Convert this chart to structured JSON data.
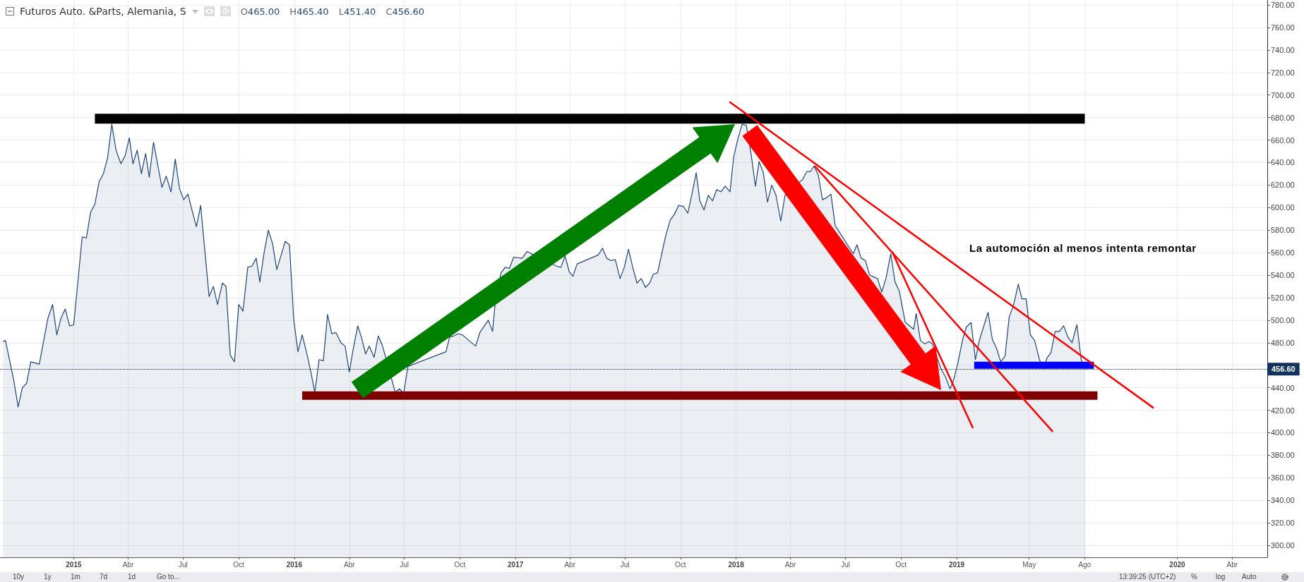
{
  "chart_data": {
    "type": "area",
    "title": "Futuros Auto. &Parts, Alemania, S",
    "annotations": [
      "O465.00",
      "H465.40",
      "L451.40",
      "C456.60",
      "La automoción al menos intenta remontar",
      "10y",
      "1y",
      "1m",
      "7d",
      "1d",
      "Go to...",
      "13:39:25 (UTC+2)",
      "%",
      "log",
      "Auto"
    ],
    "series": [
      {
        "color": "#1f4677",
        "x": [
          "2014-09-06",
          "2014-09-10",
          "2014-09-24",
          "2014-10-01",
          "2014-10-08",
          "2014-10-15",
          "2014-10-22",
          "2014-11-05",
          "2014-11-19",
          "2014-11-27",
          "2014-12-04",
          "2014-12-11",
          "2014-12-18",
          "2014-12-25",
          "2015-01-01",
          "2015-01-15",
          "2015-01-22",
          "2015-01-29",
          "2015-02-05",
          "2015-02-12",
          "2015-02-19",
          "2015-02-26",
          "2015-03-05",
          "2015-03-12",
          "2015-03-20",
          "2015-03-27",
          "2015-04-03",
          "2015-04-09",
          "2015-04-16",
          "2015-04-23",
          "2015-04-30",
          "2015-05-06",
          "2015-05-13",
          "2015-05-27",
          "2015-06-03",
          "2015-06-11",
          "2015-06-18",
          "2015-06-25",
          "2015-07-02",
          "2015-07-09",
          "2015-07-17",
          "2015-07-23",
          "2015-07-30",
          "2015-08-13",
          "2015-08-20",
          "2015-08-27",
          "2015-09-04",
          "2015-09-10",
          "2015-09-17",
          "2015-09-24",
          "2015-10-01",
          "2015-10-08",
          "2015-10-16",
          "2015-10-23",
          "2015-10-30",
          "2015-11-05",
          "2015-11-12",
          "2015-11-19",
          "2015-11-26",
          "2015-12-03",
          "2015-12-17",
          "2015-12-24",
          "2015-12-31",
          "2016-01-07",
          "2016-01-14",
          "2016-01-21",
          "2016-01-28",
          "2016-02-04",
          "2016-02-11",
          "2016-02-18",
          "2016-02-25",
          "2016-03-03",
          "2016-03-10",
          "2016-03-18",
          "2016-03-25",
          "2016-04-01",
          "2016-04-08",
          "2016-04-15",
          "2016-04-21",
          "2016-04-28",
          "2016-05-04",
          "2016-05-12",
          "2016-05-19",
          "2016-05-26",
          "2016-06-02",
          "2016-06-09",
          "2016-06-16",
          "2016-06-23",
          "2016-06-30",
          "2016-07-07",
          "2016-09-08",
          "2016-09-14",
          "2016-09-21",
          "2016-09-28",
          "2016-10-05",
          "2016-10-19",
          "2016-10-27",
          "2016-11-03",
          "2016-11-17",
          "2016-11-24",
          "2016-11-28",
          "2016-12-08",
          "2016-12-15",
          "2016-12-22",
          "2016-12-29",
          "2017-01-12",
          "2017-01-20",
          "2017-01-27",
          "2017-02-03",
          "2017-02-17",
          "2017-03-01",
          "2017-03-10",
          "2017-03-17",
          "2017-03-24",
          "2017-03-31",
          "2017-04-06",
          "2017-04-13",
          "2017-04-20",
          "2017-04-27",
          "2017-05-06",
          "2017-05-18",
          "2017-05-25",
          "2017-06-01",
          "2017-06-08",
          "2017-06-15",
          "2017-06-23",
          "2017-06-30",
          "2017-07-07",
          "2017-07-14",
          "2017-07-21",
          "2017-07-28",
          "2017-08-04",
          "2017-08-11",
          "2017-08-17",
          "2017-08-24",
          "2017-08-31",
          "2017-09-07",
          "2017-09-14",
          "2017-09-21",
          "2017-09-28",
          "2017-10-06",
          "2017-10-13",
          "2017-10-20",
          "2017-10-27",
          "2017-11-02",
          "2017-11-09",
          "2017-11-16",
          "2017-11-23",
          "2017-11-30",
          "2017-12-07",
          "2017-12-14",
          "2017-12-22",
          "2017-12-28",
          "2018-01-04",
          "2018-01-11",
          "2018-01-18",
          "2018-01-26",
          "2018-02-02",
          "2018-02-08",
          "2018-02-15",
          "2018-02-22",
          "2018-03-01",
          "2018-03-08",
          "2018-03-16",
          "2018-03-23",
          "2018-03-30",
          "2018-04-06",
          "2018-04-13",
          "2018-04-21",
          "2018-04-28",
          "2018-05-04",
          "2018-05-10",
          "2018-05-17",
          "2018-05-24",
          "2018-05-31",
          "2018-06-07",
          "2018-06-14",
          "2018-07-14",
          "2018-07-20",
          "2018-07-27",
          "2018-08-03",
          "2018-08-10",
          "2018-08-16",
          "2018-08-23",
          "2018-08-30",
          "2018-09-06",
          "2018-09-14",
          "2018-09-21",
          "2018-09-28",
          "2018-10-08",
          "2018-10-15",
          "2018-10-22",
          "2018-10-26",
          "2018-11-02",
          "2018-11-09",
          "2018-11-16",
          "2018-11-22",
          "2018-11-29",
          "2018-12-06",
          "2018-12-14",
          "2018-12-21",
          "2018-12-27",
          "2019-01-03",
          "2019-01-11",
          "2019-01-17",
          "2019-01-25",
          "2019-02-01",
          "2019-02-08",
          "2019-02-22",
          "2019-03-01",
          "2019-03-08",
          "2019-03-15",
          "2019-03-22",
          "2019-03-29",
          "2019-04-05",
          "2019-04-13",
          "2019-04-19",
          "2019-04-26",
          "2019-05-03",
          "2019-05-10",
          "2019-05-18",
          "2019-05-24",
          "2019-05-31",
          "2019-06-06",
          "2019-06-13",
          "2019-06-20",
          "2019-06-27",
          "2019-07-04",
          "2019-07-11",
          "2019-07-19",
          "2019-07-26",
          "2019-08-02"
        ],
        "values": [
          481,
          482,
          446,
          423,
          440,
          444,
          463,
          461,
          501,
          514,
          487,
          502,
          510,
          495,
          496,
          574,
          573,
          596,
          603,
          623,
          630,
          644,
          674,
          651,
          639,
          646,
          662,
          639,
          651,
          630,
          648,
          627,
          658,
          618,
          628,
          614,
          643,
          617,
          607,
          612,
          595,
          583,
          602,
          521,
          530,
          514,
          533,
          530,
          469,
          463,
          514,
          508,
          547,
          548,
          555,
          534,
          560,
          580,
          568,
          545,
          570,
          567,
          501,
          472,
          487,
          472,
          455,
          436,
          465,
          464,
          505,
          488,
          489,
          480,
          477,
          454,
          476,
          495,
          485,
          470,
          477,
          467,
          486,
          477,
          null,
          null,
          436,
          439,
          435,
          459,
          472,
          485,
          486,
          488,
          487,
          null,
          477,
          489,
          500,
          490,
          513,
          542,
          547,
          546,
          556,
          555,
          561,
          null,
          null,
          null,
          null,
          548,
          547,
          557,
          543,
          539,
          550,
          null,
          null,
          null,
          558,
          564,
          555,
          553,
          554,
          537,
          547,
          563,
          547,
          533,
          537,
          529,
          533,
          541,
          542,
          559,
          576,
          589,
          594,
          602,
          601,
          595,
          612,
          631,
          606,
          598,
          611,
          606,
          616,
          614,
          619,
          614,
          645,
          661,
          674,
          673,
          647,
          619,
          641,
          631,
          605,
          620,
          611,
          588,
          611,
          null,
          null,
          null,
          625,
          632,
          632,
          637,
          629,
          607,
          609,
          612,
          584,
          559,
          567,
          555,
          553,
          540,
          null,
          537,
          525,
          537,
          559,
          534,
          526,
          498,
          null,
          492,
          506,
          482,
          479,
          481,
          479,
          null,
          457,
          449,
          439,
          447,
          462,
          483,
          494,
          498,
          465,
          483,
          507,
          483,
          475,
          463,
          468,
          503,
          513,
          532,
          519,
          519,
          487,
          482,
          465,
          457,
          467,
          471,
          490,
          490,
          495,
          485,
          480,
          496,
          465,
          456.6
        ]
      },
      {
        "type": "line",
        "color": "#000000",
        "x": [
          "2015-02-05",
          "2019-08-01"
        ],
        "values": [
          679,
          679
        ]
      },
      {
        "type": "line",
        "color": "#800000",
        "x": [
          "2016-01-14",
          "2019-08-22"
        ],
        "values": [
          433,
          433
        ]
      },
      {
        "type": "line",
        "color": "#0000ff",
        "x": [
          "2019-01-30",
          "2019-08-16"
        ],
        "values": [
          460,
          460
        ]
      },
      {
        "type": "line",
        "color": "#ff0000",
        "x": [
          "2017-12-21",
          "2019-11-23"
        ],
        "values": [
          694,
          422
        ]
      },
      {
        "type": "line",
        "color": "#ff0000",
        "x": [
          "2018-05-11",
          "2019-06-09"
        ],
        "values": [
          637,
          401
        ]
      },
      {
        "type": "line",
        "color": "#ff0000",
        "x": [
          "2018-09-16",
          "2019-01-28"
        ],
        "values": [
          561,
          404
        ]
      }
    ],
    "xlim": [
      "2014-09-01",
      "2020-05-29"
    ],
    "xticks": [
      {
        "value": "2015-01-01",
        "label": "2015"
      },
      {
        "value": "2015-04-01",
        "label": "Abr"
      },
      {
        "value": "2015-07-01",
        "label": "Jul"
      },
      {
        "value": "2015-10-01",
        "label": "Oct"
      },
      {
        "value": "2016-01-01",
        "label": "2016"
      },
      {
        "value": "2016-04-01",
        "label": "Abr"
      },
      {
        "value": "2016-07-01",
        "label": "Jul"
      },
      {
        "value": "2016-10-01",
        "label": "Oct"
      },
      {
        "value": "2017-01-01",
        "label": "2017"
      },
      {
        "value": "2017-04-01",
        "label": "Abr"
      },
      {
        "value": "2017-07-01",
        "label": "Jul"
      },
      {
        "value": "2017-10-01",
        "label": "Oct"
      },
      {
        "value": "2018-01-01",
        "label": "2018"
      },
      {
        "value": "2018-04-01",
        "label": "Abr"
      },
      {
        "value": "2018-07-01",
        "label": "Jul"
      },
      {
        "value": "2018-10-01",
        "label": "Oct"
      },
      {
        "value": "2019-01-01",
        "label": "2019"
      },
      {
        "value": "2019-05-01",
        "label": "May"
      },
      {
        "value": "2019-08-01",
        "label": "Ago"
      },
      {
        "value": "2020-01-01",
        "label": "2020"
      },
      {
        "value": "2020-04-01",
        "label": "Abr"
      }
    ],
    "ylim": [
      289.4,
      784.4
    ],
    "yticks": [
      {
        "value": 300,
        "label": "300.00"
      },
      {
        "value": 320,
        "label": "320.00"
      },
      {
        "value": 340,
        "label": "340.00"
      },
      {
        "value": 360,
        "label": "360.00"
      },
      {
        "value": 380,
        "label": "380.00"
      },
      {
        "value": 400,
        "label": "400.00"
      },
      {
        "value": 420,
        "label": "420.00"
      },
      {
        "value": 440,
        "label": "440.00"
      },
      {
        "value": 460,
        "label": null
      },
      {
        "value": 480,
        "label": "480.00"
      },
      {
        "value": 500,
        "label": "500.00"
      },
      {
        "value": 520,
        "label": "520.00"
      },
      {
        "value": 540,
        "label": "540.00"
      },
      {
        "value": 560,
        "label": "560.00"
      },
      {
        "value": 580,
        "label": "580.00"
      },
      {
        "value": 600,
        "label": "600.00"
      },
      {
        "value": 620,
        "label": "620.00"
      },
      {
        "value": 640,
        "label": "640.00"
      },
      {
        "value": 660,
        "label": "660.00"
      },
      {
        "value": 680,
        "label": "680.00"
      },
      {
        "value": 700,
        "label": "700.00"
      },
      {
        "value": 720,
        "label": "720.00"
      },
      {
        "value": 740,
        "label": "740.00"
      },
      {
        "value": 760,
        "label": "760.00"
      },
      {
        "value": 780,
        "label": "780.00"
      }
    ],
    "ref_lines": [
      {
        "axis": "y",
        "value": 456.6,
        "label": "456.60",
        "color": "#12325e",
        "line_style": "dotted"
      }
    ],
    "grid": true,
    "marker": "none"
  }
}
